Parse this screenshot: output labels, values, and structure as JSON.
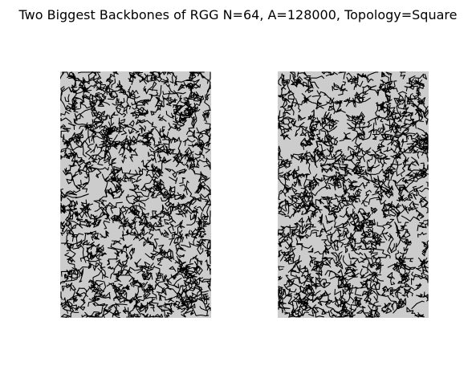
{
  "title": "Two Biggest Backbones of RGG N=64, A=128000, Topology=Square",
  "panels": [
    {
      "id": "backbone-1",
      "edge_color": "#000000",
      "background_color": "#cccccc"
    },
    {
      "id": "backbone-2",
      "edge_color": "#000000",
      "background_color": "#cccccc"
    }
  ]
}
